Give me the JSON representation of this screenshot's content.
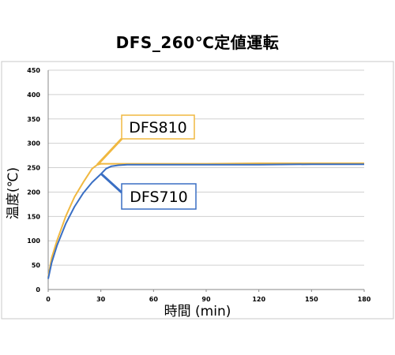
{
  "chart_data": {
    "type": "line",
    "title": "DFS_260℃定値運転",
    "xlabel": "時間 (min)",
    "ylabel": "温度(℃)",
    "xlim": [
      0,
      180
    ],
    "ylim": [
      0,
      450
    ],
    "x_ticks": [
      0,
      30,
      60,
      90,
      120,
      150,
      180
    ],
    "y_ticks": [
      0,
      50,
      100,
      150,
      200,
      250,
      300,
      350,
      400,
      450
    ],
    "grid": true,
    "series": [
      {
        "name": "DFS810",
        "color": "#f0b840",
        "x": [
          0,
          2,
          5,
          10,
          15,
          20,
          25,
          28,
          30,
          35,
          40,
          60,
          90,
          120,
          150,
          180
        ],
        "y": [
          25,
          65,
          100,
          150,
          190,
          220,
          248,
          256,
          258,
          258,
          258,
          258,
          258,
          259,
          259,
          259
        ]
      },
      {
        "name": "DFS710",
        "color": "#3a6fc4",
        "x": [
          0,
          2,
          5,
          10,
          15,
          20,
          25,
          30,
          33,
          36,
          40,
          45,
          60,
          90,
          120,
          150,
          180
        ],
        "y": [
          22,
          55,
          90,
          135,
          170,
          198,
          220,
          237,
          248,
          253,
          255,
          256,
          256,
          256,
          256,
          257,
          257
        ]
      }
    ]
  }
}
